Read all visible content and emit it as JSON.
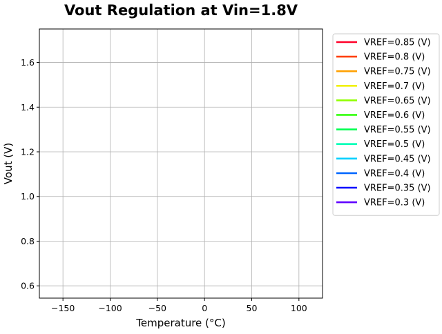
{
  "chart_data": {
    "type": "line",
    "title": "Vout Regulation at Vin=1.8V",
    "xlabel": "Temperature (°C)",
    "ylabel": "Vout (V)",
    "xlim": [
      -175,
      125
    ],
    "ylim": [
      0.545,
      1.75
    ],
    "xticks": [
      -150,
      -100,
      -50,
      0,
      50,
      100
    ],
    "xtick_labels": [
      "−150",
      "−100",
      "−50",
      "0",
      "50",
      "100"
    ],
    "yticks": [
      0.6,
      0.8,
      1.0,
      1.2,
      1.4,
      1.6
    ],
    "ytick_labels": [
      "0.6",
      "0.8",
      "1.0",
      "1.2",
      "1.4",
      "1.6"
    ],
    "grid": true,
    "legend_position": "outside-right-top",
    "series": [
      {
        "name": "VREF=0.85 (V)",
        "color": "#ff0028",
        "x": [],
        "y": []
      },
      {
        "name": "VREF=0.8 (V)",
        "color": "#ff4000",
        "x": [],
        "y": []
      },
      {
        "name": "VREF=0.75 (V)",
        "color": "#ffa000",
        "x": [],
        "y": []
      },
      {
        "name": "VREF=0.7 (V)",
        "color": "#f0f000",
        "x": [],
        "y": []
      },
      {
        "name": "VREF=0.65 (V)",
        "color": "#90ff00",
        "x": [],
        "y": []
      },
      {
        "name": "VREF=0.6 (V)",
        "color": "#28ff00",
        "x": [],
        "y": []
      },
      {
        "name": "VREF=0.55 (V)",
        "color": "#00ff50",
        "x": [],
        "y": []
      },
      {
        "name": "VREF=0.5 (V)",
        "color": "#00ffb8",
        "x": [],
        "y": []
      },
      {
        "name": "VREF=0.45 (V)",
        "color": "#00d0ff",
        "x": [],
        "y": []
      },
      {
        "name": "VREF=0.4 (V)",
        "color": "#0068ff",
        "x": [],
        "y": []
      },
      {
        "name": "VREF=0.35 (V)",
        "color": "#0000ff",
        "x": [],
        "y": []
      },
      {
        "name": "VREF=0.3 (V)",
        "color": "#6000ff",
        "x": [],
        "y": []
      }
    ]
  }
}
